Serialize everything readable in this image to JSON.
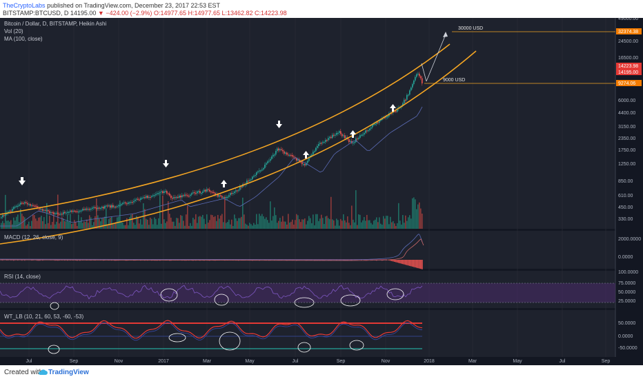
{
  "header": {
    "publisher": "TheCryptoLabs",
    "published_text": "published on TradingView.com, December 23, 2017 22:53 EST",
    "symbol": "BITSTAMP:BTCUSD, D",
    "last": "14195.00",
    "change": "−424.00 (−2.9%)",
    "ohlc": "O:14977.65 H:14977.65 L:13462.82 C:14223.98"
  },
  "pane_labels": {
    "title": "Bitcoin / Dollar, D, BITSTAMP, Heikin Ashi",
    "vol": "Vol (20)",
    "ma": "MA (100, close)",
    "macd": "MACD (12, 26, close, 9)",
    "rsi": "RSI (14, close)",
    "wt": "WT_LB (10, 21, 60, 53, -60, -53)"
  },
  "price_axis": [
    "49000.00",
    "24500.00",
    "16500.00",
    "8500.00",
    "6000.00",
    "4400.00",
    "3150.00",
    "2350.00",
    "1750.00",
    "1250.00",
    "850.00",
    "610.00",
    "450.00",
    "330.00"
  ],
  "price_tags": [
    {
      "text": "32374.38",
      "color": "#f57c00"
    },
    {
      "text": "14223.98",
      "color": "#e53935"
    },
    {
      "text": "14195.00",
      "color": "#e53935"
    },
    {
      "text": "9274.06",
      "color": "#f57c00"
    }
  ],
  "annotations": {
    "upper": "30000  USD",
    "lower": "9000  USD"
  },
  "macd_axis": [
    "2000.0000",
    "0.0000"
  ],
  "rsi_axis": [
    "100.0000",
    "75.0000",
    "50.0000",
    "25.0000"
  ],
  "wt_axis": [
    "50.0000",
    "0.0000",
    "-50.0000"
  ],
  "x_axis": [
    "Jul",
    "Sep",
    "Nov",
    "2017",
    "Mar",
    "May",
    "Jul",
    "Sep",
    "Nov",
    "2018",
    "Mar",
    "May",
    "Jul",
    "Sep"
  ],
  "footer": {
    "created": "Created with",
    "brand": "TradingView"
  },
  "colors": {
    "channel": "#f5a623",
    "up": "#26a69a",
    "down": "#ef5350",
    "ma": "#5b6bb5",
    "wt_over": "#e53935",
    "wt_under": "#26a69a"
  }
}
